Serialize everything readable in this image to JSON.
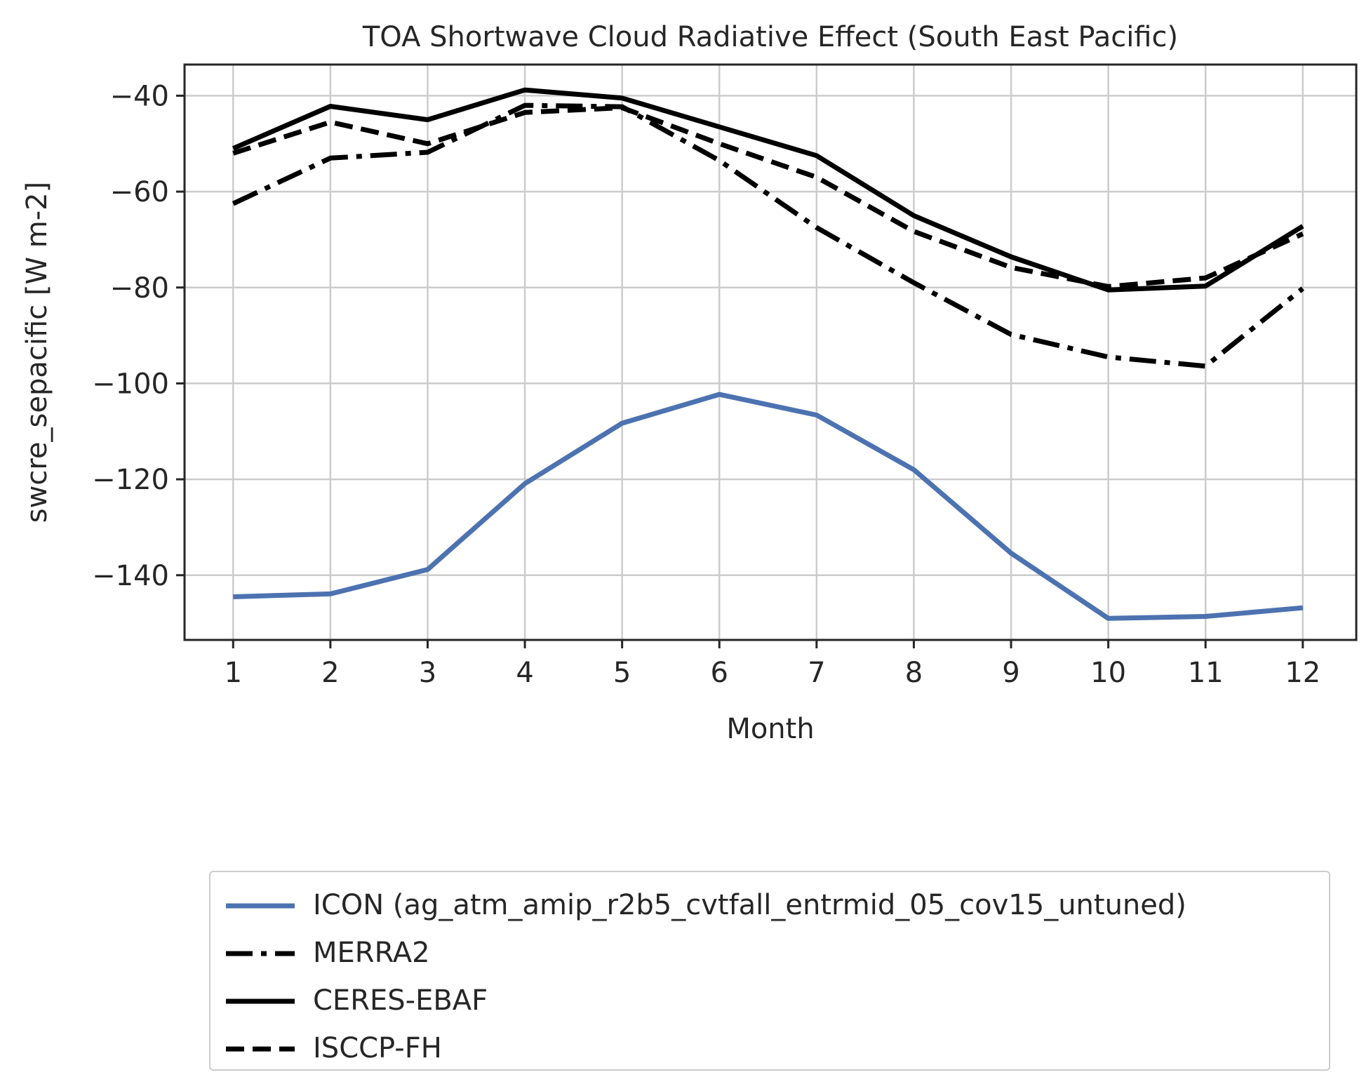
{
  "chart_data": {
    "type": "line",
    "title": "TOA Shortwave Cloud Radiative Effect (South East Pacific)",
    "xlabel": "Month",
    "ylabel": "swcre_sepacific [W m-2]",
    "x": [
      1,
      2,
      3,
      4,
      5,
      6,
      7,
      8,
      9,
      10,
      11,
      12
    ],
    "xticks": [
      "1",
      "2",
      "3",
      "4",
      "5",
      "6",
      "7",
      "8",
      "9",
      "10",
      "11",
      "12"
    ],
    "yticks": [
      -40,
      -60,
      -80,
      -100,
      -120,
      -140
    ],
    "ytick_labels": [
      "−40",
      "−60",
      "−80",
      "−100",
      "−120",
      "−140"
    ],
    "xlim": [
      0.5,
      12.55
    ],
    "ylim": [
      -153.5,
      -33.5
    ],
    "grid": true,
    "legend_position": "below",
    "series": [
      {
        "name": "ICON (ag_atm_amip_r2b5_cvtfall_entrmid_05_cov15_untuned)",
        "color": "#4c72b0",
        "style": "solid",
        "values": [
          -144.5,
          -143.9,
          -138.8,
          -120.9,
          -108.3,
          -102.3,
          -106.6,
          -118.0,
          -135.4,
          -149.0,
          -148.6,
          -146.8
        ]
      },
      {
        "name": "MERRA2",
        "color": "#000000",
        "style": "dashdot",
        "values": [
          -62.5,
          -53.0,
          -51.8,
          -42.0,
          -42.3,
          -53.5,
          -67.5,
          -79.0,
          -89.8,
          -94.5,
          -96.4,
          -80.2
        ]
      },
      {
        "name": "CERES-EBAF",
        "color": "#000000",
        "style": "solid",
        "values": [
          -51.0,
          -42.2,
          -45.0,
          -38.8,
          -40.5,
          -46.5,
          -52.5,
          -65.0,
          -73.6,
          -80.5,
          -79.7,
          -67.2
        ]
      },
      {
        "name": "ISCCP-FH",
        "color": "#000000",
        "style": "dashed",
        "values": [
          -52.0,
          -45.5,
          -50.0,
          -43.5,
          -42.5,
          -50.0,
          -57.0,
          -68.3,
          -75.8,
          -79.8,
          -78.0,
          -68.8
        ]
      }
    ]
  }
}
